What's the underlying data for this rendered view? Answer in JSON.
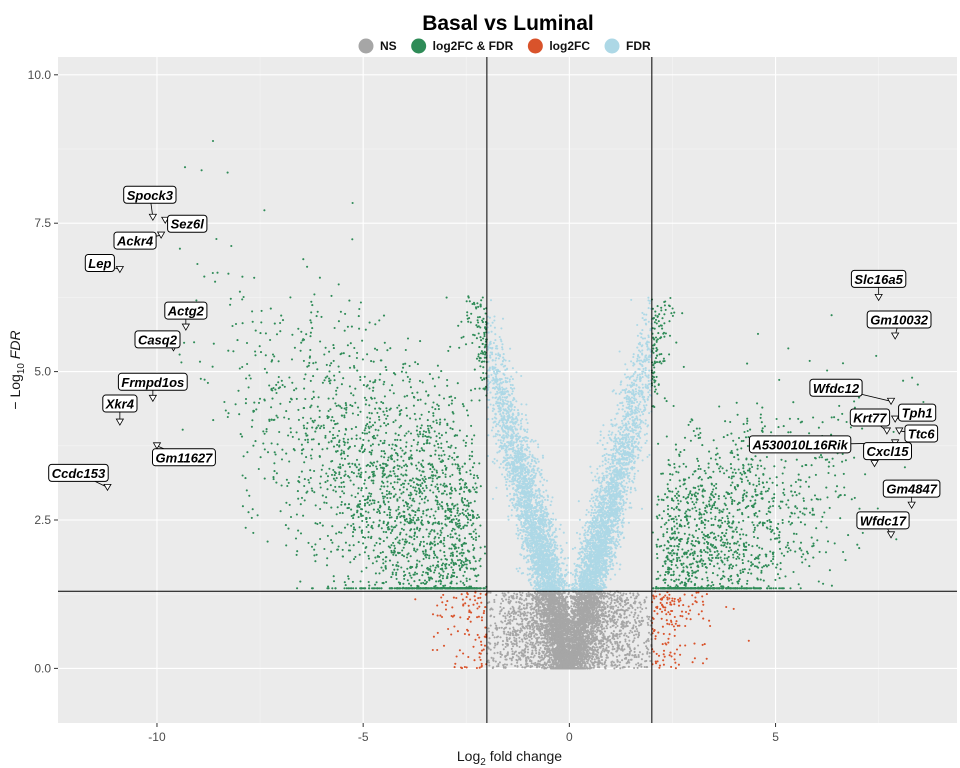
{
  "chart_data": {
    "type": "scatter",
    "title": "Basal vs Luminal",
    "xlabel": {
      "prefix": "Log",
      "sub": "2",
      "suffix": " fold change"
    },
    "ylabel": {
      "prefix": "− Log",
      "sub": "10",
      "suffix": " FDR"
    },
    "xlim": [
      -12.4,
      9.4
    ],
    "ylim": [
      -0.92,
      10.3
    ],
    "x_ticks": [
      {
        "value": -10,
        "label": "-10"
      },
      {
        "value": -5,
        "label": "-5"
      },
      {
        "value": 0,
        "label": "0"
      },
      {
        "value": 5,
        "label": "5"
      }
    ],
    "y_ticks": [
      {
        "value": 0,
        "label": "0.0"
      },
      {
        "value": 2.5,
        "label": "2.5"
      },
      {
        "value": 5,
        "label": "5.0"
      },
      {
        "value": 7.5,
        "label": "7.5"
      },
      {
        "value": 10,
        "label": "10.0"
      }
    ],
    "grid": true,
    "legend_position": "top",
    "thresholds": {
      "fc_cutoff": 2,
      "fdr_cutoff": 1.3
    },
    "series": [
      {
        "name": "NS",
        "color": "#a6a6a6"
      },
      {
        "name": "log2FC & FDR",
        "color": "#2e8b57"
      },
      {
        "name": "log2FC",
        "color": "#d9532b"
      },
      {
        "name": "FDR",
        "color": "#add8e6"
      }
    ],
    "labels": [
      {
        "gene": "Spock3",
        "x": -10.1,
        "y": 7.6
      },
      {
        "gene": "Sez6l",
        "x": -9.8,
        "y": 7.55
      },
      {
        "gene": "Ackr4",
        "x": -9.9,
        "y": 7.3
      },
      {
        "gene": "Lep",
        "x": -10.9,
        "y": 6.72
      },
      {
        "gene": "Actg2",
        "x": -9.3,
        "y": 5.75
      },
      {
        "gene": "Casq2",
        "x": -9.6,
        "y": 5.4
      },
      {
        "gene": "Frmpd1os",
        "x": -10.1,
        "y": 4.55
      },
      {
        "gene": "Xkr4",
        "x": -10.9,
        "y": 4.15
      },
      {
        "gene": "Gm11627",
        "x": -10.0,
        "y": 3.75
      },
      {
        "gene": "Ccdc153",
        "x": -11.2,
        "y": 3.05
      },
      {
        "gene": "Slc16a5",
        "x": 7.5,
        "y": 6.25
      },
      {
        "gene": "Gm10032",
        "x": 7.9,
        "y": 5.6
      },
      {
        "gene": "Wfdc12",
        "x": 7.8,
        "y": 4.5
      },
      {
        "gene": "Tph1",
        "x": 7.9,
        "y": 4.2
      },
      {
        "gene": "Krt77",
        "x": 7.7,
        "y": 4.0
      },
      {
        "gene": "Ttc6",
        "x": 8.0,
        "y": 4.0
      },
      {
        "gene": "A530010L16Rik",
        "x": 7.9,
        "y": 3.8
      },
      {
        "gene": "Cxcl15",
        "x": 7.4,
        "y": 3.45
      },
      {
        "gene": "Gm4847",
        "x": 8.3,
        "y": 2.75
      },
      {
        "gene": "Wfdc17",
        "x": 7.8,
        "y": 2.25
      }
    ]
  }
}
